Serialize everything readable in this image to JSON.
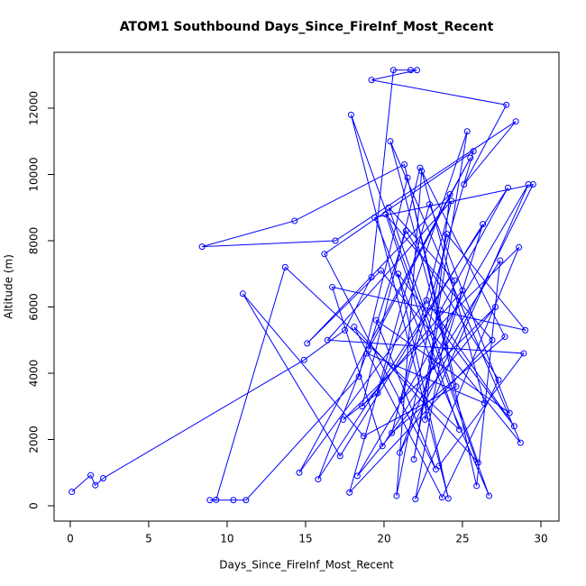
{
  "chart_data": {
    "type": "line",
    "title": "ATOM1 Southbound Days_Since_FireInf_Most_Recent",
    "x_label": "Days_Since_FireInf_Most_Recent",
    "y_label": "Altitude (m)",
    "xlim": [
      -1.03,
      31.15
    ],
    "ylim": [
      -463,
      13687
    ],
    "xticks": [
      0,
      5,
      10,
      15,
      20,
      25,
      30
    ],
    "yticks": [
      0,
      2000,
      4000,
      6000,
      8000,
      10000,
      12000
    ],
    "markers": true,
    "series": [
      {
        "color": "#0000ff",
        "x": [
          0.1,
          1.3,
          1.6,
          2.1,
          14.9,
          17.5,
          19.2,
          20.6,
          21.7,
          22.1,
          19.2,
          27.8,
          25.1,
          28.4,
          16.9,
          8.4,
          14.3,
          21.3,
          24.6,
          18.7,
          11.0,
          17.2,
          26.3,
          23.9,
          20.4,
          28.7,
          19.8,
          15.1,
          24.2,
          22.6,
          29.2,
          18.3,
          27.1,
          21.1,
          25.7,
          16.2,
          23.3,
          19.5,
          28.0,
          22.9,
          17.8,
          26.9,
          20.1,
          24.8,
          13.7,
          9.3,
          8.9,
          10.4,
          11.2,
          18.4,
          21.5,
          25.9,
          27.4,
          23.1,
          19.9,
          16.7,
          29.0,
          24.0,
          20.8,
          22.4,
          26.4,
          18.9,
          15.8,
          27.9,
          23.6,
          21.9,
          25.3,
          19.6,
          17.4,
          28.6,
          22.0,
          24.5,
          20.3,
          26.0,
          18.1,
          23.7,
          27.3,
          21.4,
          19.0,
          25.5,
          14.6,
          22.7,
          28.3,
          20.9,
          24.1,
          17.9,
          26.7,
          23.0,
          19.4,
          29.5,
          21.0,
          25.0,
          18.6,
          22.3,
          27.7,
          20.5,
          24.3,
          16.4,
          28.9,
          23.5
        ],
        "values": [
          420,
          920,
          620,
          830,
          4400,
          5300,
          6900,
          13150,
          13150,
          13150,
          12850,
          12100,
          9700,
          11600,
          8000,
          7820,
          8600,
          10300,
          3600,
          2100,
          6400,
          1500,
          8500,
          4800,
          11000,
          1900,
          7100,
          4900,
          9400,
          2600,
          9700,
          900,
          6000,
          3200,
          10700,
          7600,
          1100,
          5600,
          2800,
          9100,
          400,
          5000,
          8800,
          2300,
          7200,
          180,
          170,
          170,
          170,
          3900,
          9900,
          600,
          7400,
          4200,
          1800,
          6600,
          5300,
          8200,
          300,
          10100,
          3100,
          4600,
          800,
          9600,
          5900,
          1400,
          11300,
          3400,
          2600,
          7800,
          200,
          6800,
          9000,
          1300,
          5400,
          250,
          3800,
          8300,
          4700,
          10500,
          1000,
          6200,
          2400,
          7000,
          220,
          11800,
          300,
          4400,
          8700,
          9700,
          1600,
          6500,
          3000,
          10200,
          5100,
          2200,
          9200,
          5000,
          4600,
          1200
        ]
      }
    ]
  }
}
